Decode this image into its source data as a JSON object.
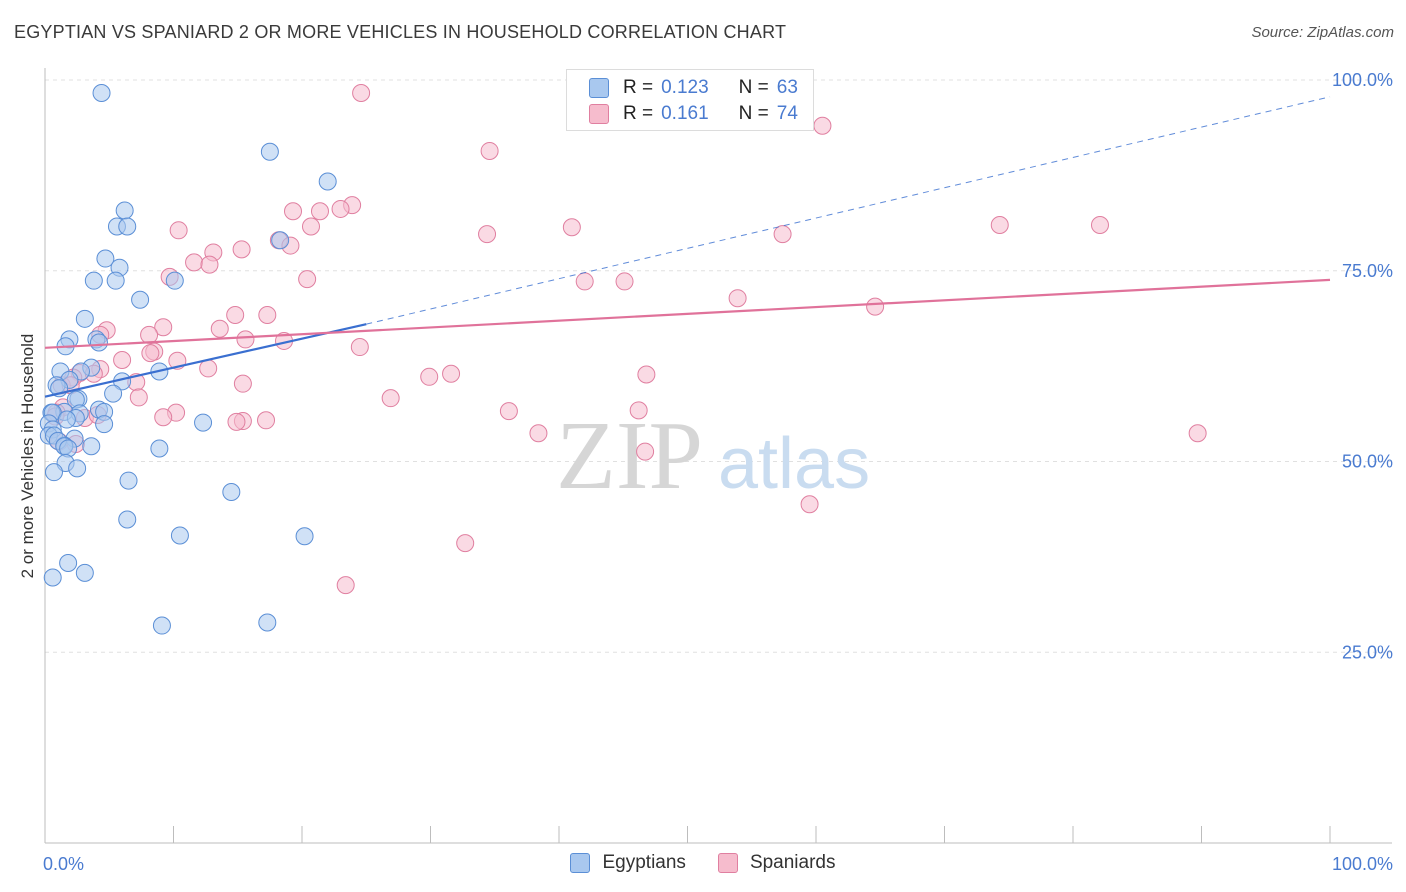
{
  "title": "EGYPTIAN VS SPANIARD 2 OR MORE VEHICLES IN HOUSEHOLD CORRELATION CHART",
  "source": "Source: ZipAtlas.com",
  "watermark": {
    "zip": "ZIP",
    "atlas": "atlas"
  },
  "colors": {
    "blue_fill": "#a9c8ef",
    "blue_stroke": "#5b8fd6",
    "blue_line": "#3a6fd0",
    "pink_fill": "#f6bccd",
    "pink_stroke": "#e07fa0",
    "pink_line": "#e0729a",
    "axis_text": "#4a7bd0",
    "grid": "#e0e0e0"
  },
  "legend": {
    "rows": [
      {
        "r_label": "R =",
        "r_value": "0.123",
        "n_label": "N =",
        "n_value": "63"
      },
      {
        "r_label": "R =",
        "r_value": "0.161",
        "n_label": "N =",
        "n_value": "74"
      }
    ]
  },
  "bottom_legend": [
    "Egyptians",
    "Spaniards"
  ],
  "chart_data": {
    "type": "scatter",
    "title": "EGYPTIAN VS SPANIARD 2 OR MORE VEHICLES IN HOUSEHOLD CORRELATION CHART",
    "xlabel": "",
    "ylabel": "2 or more Vehicles in Household",
    "xlim": [
      0,
      100
    ],
    "ylim": [
      0,
      102
    ],
    "x_tick_labels": [
      "0.0%",
      "100.0%"
    ],
    "y_ticks": [
      25,
      50,
      75,
      100
    ],
    "y_tick_labels": [
      "25.0%",
      "50.0%",
      "75.0%",
      "100.0%"
    ],
    "grid": true,
    "series": [
      {
        "name": "Egyptians",
        "r": 0.123,
        "n": 63,
        "trend": {
          "x0": 0,
          "y0": 58.5,
          "x1": 25,
          "y1": 68.0,
          "dashed_to_x": 100,
          "dashed_to_y": 97.8
        },
        "points": [
          [
            4.4,
            98.3
          ],
          [
            17.5,
            90.6
          ],
          [
            22,
            86.7
          ],
          [
            6.2,
            82.9
          ],
          [
            5.6,
            80.8
          ],
          [
            6.4,
            80.8
          ],
          [
            18.3,
            79.0
          ],
          [
            4.7,
            76.6
          ],
          [
            5.8,
            75.4
          ],
          [
            3.8,
            73.7
          ],
          [
            5.5,
            73.7
          ],
          [
            10.1,
            73.7
          ],
          [
            7.4,
            71.2
          ],
          [
            3.1,
            68.7
          ],
          [
            1.9,
            66.0
          ],
          [
            4.0,
            66.0
          ],
          [
            4.2,
            65.6
          ],
          [
            1.6,
            65.1
          ],
          [
            3.6,
            62.3
          ],
          [
            1.2,
            61.8
          ],
          [
            2.8,
            61.8
          ],
          [
            8.9,
            61.8
          ],
          [
            1.9,
            60.7
          ],
          [
            6.0,
            60.5
          ],
          [
            0.9,
            60.0
          ],
          [
            1.1,
            59.6
          ],
          [
            5.3,
            58.9
          ],
          [
            2.6,
            58.2
          ],
          [
            2.4,
            58.1
          ],
          [
            4.2,
            56.8
          ],
          [
            1.5,
            56.5
          ],
          [
            4.6,
            56.5
          ],
          [
            0.5,
            56.4
          ],
          [
            0.6,
            56.4
          ],
          [
            2.7,
            56.3
          ],
          [
            2.4,
            55.7
          ],
          [
            1.7,
            55.5
          ],
          [
            0.3,
            55.0
          ],
          [
            4.6,
            54.9
          ],
          [
            0.6,
            54.2
          ],
          [
            0.3,
            53.4
          ],
          [
            0.7,
            53.4
          ],
          [
            2.3,
            53.0
          ],
          [
            1.5,
            52.1
          ],
          [
            1.0,
            52.7
          ],
          [
            3.6,
            52.0
          ],
          [
            1.5,
            52.0
          ],
          [
            1.8,
            51.7
          ],
          [
            12.3,
            55.1
          ],
          [
            8.9,
            51.7
          ],
          [
            1.6,
            49.8
          ],
          [
            2.5,
            49.1
          ],
          [
            0.7,
            48.6
          ],
          [
            6.5,
            47.5
          ],
          [
            6.4,
            42.4
          ],
          [
            14.5,
            46.0
          ],
          [
            10.5,
            40.3
          ],
          [
            20.2,
            40.2
          ],
          [
            1.8,
            36.7
          ],
          [
            3.1,
            35.4
          ],
          [
            17.3,
            28.9
          ],
          [
            9.1,
            28.5
          ],
          [
            0.6,
            34.8
          ]
        ]
      },
      {
        "name": "Spaniards",
        "r": 0.161,
        "n": 74,
        "trend": {
          "x0": 0,
          "y0": 64.9,
          "x1": 100,
          "y1": 73.8
        },
        "points": [
          [
            24.6,
            98.3
          ],
          [
            60.5,
            94.0
          ],
          [
            34.6,
            90.7
          ],
          [
            23.9,
            83.6
          ],
          [
            23.0,
            83.1
          ],
          [
            21.4,
            82.8
          ],
          [
            19.3,
            82.8
          ],
          [
            20.7,
            80.8
          ],
          [
            10.4,
            80.3
          ],
          [
            34.4,
            79.8
          ],
          [
            57.4,
            79.8
          ],
          [
            74.3,
            81.0
          ],
          [
            82.1,
            81.0
          ],
          [
            41.0,
            80.7
          ],
          [
            18.2,
            79.0
          ],
          [
            19.1,
            78.3
          ],
          [
            15.3,
            77.8
          ],
          [
            13.1,
            77.4
          ],
          [
            11.6,
            76.1
          ],
          [
            12.8,
            75.8
          ],
          [
            9.7,
            74.2
          ],
          [
            20.4,
            73.9
          ],
          [
            42.0,
            73.6
          ],
          [
            45.1,
            73.6
          ],
          [
            53.9,
            71.4
          ],
          [
            64.6,
            70.3
          ],
          [
            14.8,
            69.2
          ],
          [
            17.3,
            69.2
          ],
          [
            9.2,
            67.6
          ],
          [
            13.6,
            67.4
          ],
          [
            4.8,
            67.2
          ],
          [
            4.3,
            66.6
          ],
          [
            8.1,
            66.6
          ],
          [
            15.6,
            66.0
          ],
          [
            18.6,
            65.8
          ],
          [
            24.5,
            65.0
          ],
          [
            8.5,
            64.4
          ],
          [
            8.2,
            64.2
          ],
          [
            6.0,
            63.3
          ],
          [
            10.3,
            63.2
          ],
          [
            12.7,
            62.2
          ],
          [
            4.3,
            62.1
          ],
          [
            2.7,
            61.6
          ],
          [
            3.8,
            61.5
          ],
          [
            31.6,
            61.5
          ],
          [
            46.8,
            61.4
          ],
          [
            2.2,
            61.0
          ],
          [
            7.1,
            60.4
          ],
          [
            29.9,
            61.1
          ],
          [
            15.4,
            60.2
          ],
          [
            1.3,
            60.0
          ],
          [
            2.0,
            60.0
          ],
          [
            7.3,
            58.4
          ],
          [
            26.9,
            58.3
          ],
          [
            1.4,
            57.1
          ],
          [
            0.9,
            56.4
          ],
          [
            0.8,
            55.9
          ],
          [
            3.1,
            55.7
          ],
          [
            36.1,
            56.6
          ],
          [
            46.2,
            56.7
          ],
          [
            4.1,
            56.1
          ],
          [
            10.2,
            56.4
          ],
          [
            9.2,
            55.8
          ],
          [
            17.2,
            55.4
          ],
          [
            15.4,
            55.3
          ],
          [
            14.9,
            55.2
          ],
          [
            1.1,
            52.6
          ],
          [
            2.4,
            52.3
          ],
          [
            46.7,
            51.3
          ],
          [
            38.4,
            53.7
          ],
          [
            89.7,
            53.7
          ],
          [
            59.5,
            44.4
          ],
          [
            32.7,
            39.3
          ],
          [
            23.4,
            33.8
          ]
        ]
      }
    ]
  }
}
